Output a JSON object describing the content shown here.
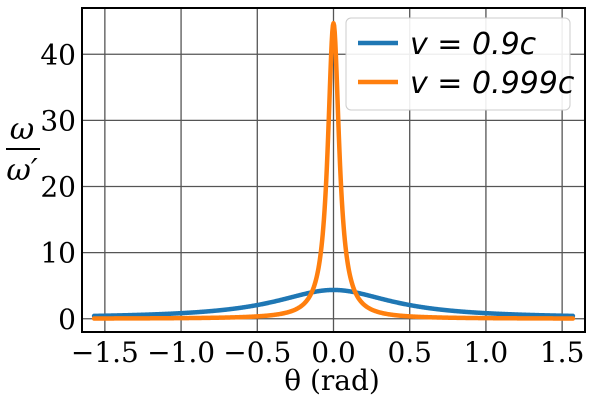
{
  "chart_data": {
    "type": "line",
    "xlabel": "θ (rad)",
    "ylabel_num": "ω",
    "ylabel_den": "ω′",
    "xlim": [
      -1.65,
      1.65
    ],
    "ylim": [
      -2,
      47
    ],
    "xticks": [
      -1.5,
      -1.0,
      -0.5,
      0.0,
      0.5,
      1.0,
      1.5
    ],
    "xtick_labels": [
      "−1.5",
      "−1.0",
      "−0.5",
      "0.0",
      "0.5",
      "1.0",
      "1.5"
    ],
    "yticks": [
      0,
      10,
      20,
      30,
      40
    ],
    "ytick_labels": [
      "0",
      "10",
      "20",
      "30",
      "40"
    ],
    "grid": true,
    "legend_position": "top-right",
    "x_domain": [
      -1.5708,
      1.5708
    ],
    "series": [
      {
        "name": "v = 0.9c",
        "beta": 0.9,
        "color": "#1f77b4"
      },
      {
        "name": "v = 0.999c",
        "beta": 0.999,
        "color": "#ff7f0e"
      }
    ]
  }
}
